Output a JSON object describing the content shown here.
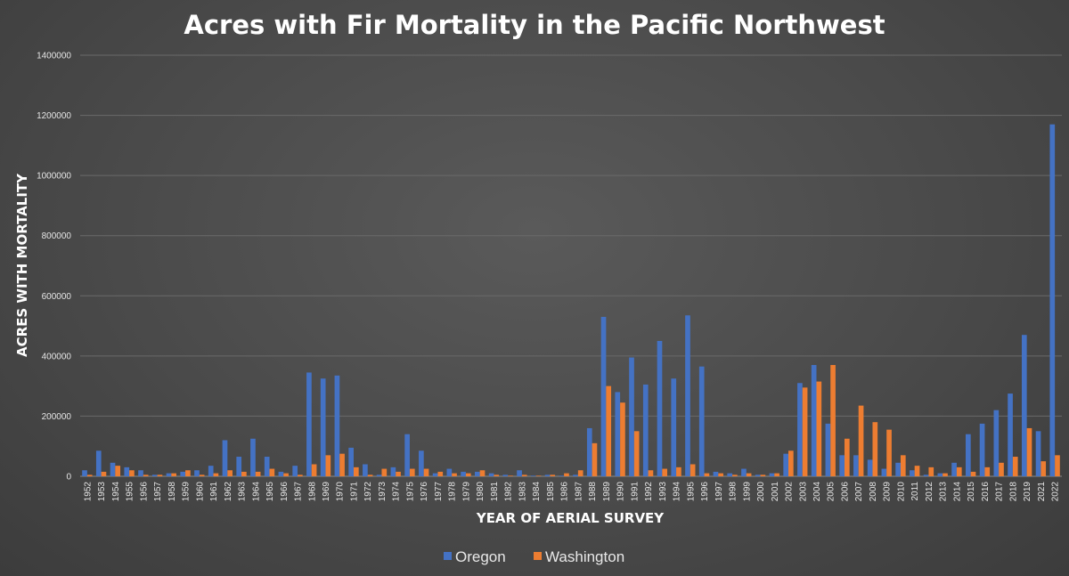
{
  "chart_data": {
    "type": "bar",
    "title": "Acres with Fir Mortality in the Pacific Northwest",
    "xlabel": "YEAR OF AERIAL SURVEY",
    "ylabel": "ACRES WITH MORTALITY",
    "ylim": [
      0,
      1400000
    ],
    "yticks": [
      0,
      200000,
      400000,
      600000,
      800000,
      1000000,
      1200000,
      1400000
    ],
    "ytick_labels": [
      "0",
      "200000",
      "400000",
      "600000",
      "800000",
      "1000000",
      "1200000",
      "1400000"
    ],
    "grid": true,
    "legend_position": "bottom",
    "categories": [
      "1952",
      "1953",
      "1954",
      "1955",
      "1956",
      "1957",
      "1958",
      "1959",
      "1960",
      "1961",
      "1962",
      "1963",
      "1964",
      "1965",
      "1966",
      "1967",
      "1968",
      "1969",
      "1970",
      "1971",
      "1972",
      "1973",
      "1974",
      "1975",
      "1976",
      "1977",
      "1978",
      "1979",
      "1980",
      "1981",
      "1982",
      "1983",
      "1984",
      "1985",
      "1986",
      "1987",
      "1988",
      "1989",
      "1990",
      "1991",
      "1992",
      "1993",
      "1994",
      "1995",
      "1996",
      "1997",
      "1998",
      "1999",
      "2000",
      "2001",
      "2002",
      "2003",
      "2004",
      "2005",
      "2006",
      "2007",
      "2008",
      "2009",
      "2010",
      "2011",
      "2012",
      "2013",
      "2014",
      "2015",
      "2016",
      "2017",
      "2018",
      "2019",
      "2021",
      "2022"
    ],
    "series": [
      {
        "name": "Oregon",
        "color": "#4472c4",
        "values": [
          20000,
          85000,
          45000,
          30000,
          20000,
          5000,
          10000,
          15000,
          20000,
          35000,
          120000,
          65000,
          125000,
          65000,
          15000,
          35000,
          345000,
          325000,
          335000,
          95000,
          40000,
          5000,
          30000,
          140000,
          85000,
          10000,
          25000,
          15000,
          15000,
          10000,
          5000,
          20000,
          2000,
          5000,
          2000,
          5000,
          160000,
          530000,
          280000,
          395000,
          305000,
          450000,
          325000,
          535000,
          365000,
          15000,
          10000,
          25000,
          5000,
          10000,
          75000,
          310000,
          370000,
          175000,
          70000,
          70000,
          55000,
          25000,
          45000,
          20000,
          5000,
          10000,
          45000,
          140000,
          175000,
          220000,
          275000,
          470000,
          150000,
          1170000
        ]
      },
      {
        "name": "Washington",
        "color": "#ed7d31",
        "values": [
          5000,
          15000,
          35000,
          20000,
          5000,
          5000,
          10000,
          20000,
          5000,
          10000,
          20000,
          15000,
          15000,
          25000,
          10000,
          5000,
          40000,
          70000,
          75000,
          30000,
          5000,
          25000,
          15000,
          25000,
          25000,
          15000,
          10000,
          10000,
          20000,
          5000,
          2000,
          5000,
          2000,
          5000,
          10000,
          20000,
          110000,
          300000,
          245000,
          150000,
          20000,
          25000,
          30000,
          40000,
          10000,
          10000,
          5000,
          10000,
          5000,
          10000,
          85000,
          295000,
          315000,
          370000,
          125000,
          235000,
          180000,
          155000,
          70000,
          35000,
          30000,
          10000,
          30000,
          15000,
          30000,
          45000,
          65000,
          160000,
          50000,
          70000
        ]
      }
    ]
  }
}
